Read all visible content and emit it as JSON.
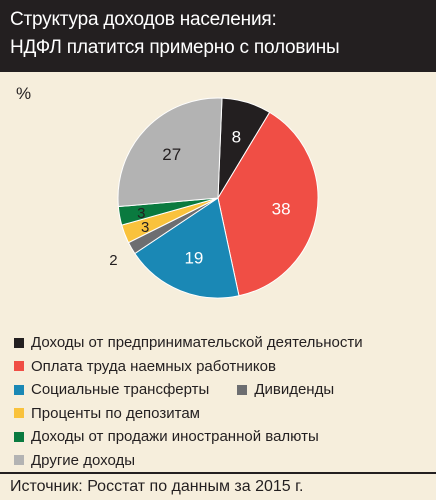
{
  "header": {
    "title_line1": "Структура доходов населения:",
    "title_line2": "НДФЛ платится примерно с половины"
  },
  "unit": "%",
  "chart_data": {
    "type": "pie",
    "title": "Структура доходов населения: НДФЛ платится примерно с половины",
    "unit": "%",
    "slices": [
      {
        "label": "Доходы от предпринимательской деятельности",
        "value": 8,
        "color": "#231f20",
        "label_color": "#ffffff"
      },
      {
        "label": "Оплата труда наемных работников",
        "value": 38,
        "color": "#f04e45",
        "label_color": "#ffffff"
      },
      {
        "label": "Социальные трансферты",
        "value": 19,
        "color": "#1a88b5",
        "label_color": "#ffffff"
      },
      {
        "label": "Дивиденды",
        "value": 2,
        "color": "#6d6e71",
        "label_color": "#231f20"
      },
      {
        "label": "Проценты по депозитам",
        "value": 3,
        "color": "#f9c23c",
        "label_color": "#231f20"
      },
      {
        "label": "Доходы от продажи иностранной валюты",
        "value": 3,
        "color": "#0a7a3f",
        "label_color": "#231f20"
      },
      {
        "label": "Другие доходы",
        "value": 27,
        "color": "#b3b3b3",
        "label_color": "#231f20"
      }
    ],
    "legend_placement": "bottom"
  },
  "legend_rows": [
    [
      {
        "label": "Доходы от предпринимательской деятельности",
        "color": "#231f20"
      }
    ],
    [
      {
        "label": "Оплата труда наемных работников",
        "color": "#f04e45"
      }
    ],
    [
      {
        "label": "Социальные трансферты",
        "color": "#1a88b5"
      },
      {
        "label": "Дивиденды",
        "color": "#6d6e71"
      }
    ],
    [
      {
        "label": "Проценты по депозитам",
        "color": "#f9c23c"
      }
    ],
    [
      {
        "label": "Доходы от продажи иностранной валюты",
        "color": "#0a7a3f"
      }
    ],
    [
      {
        "label": "Другие доходы",
        "color": "#b3b3b3"
      }
    ]
  ],
  "source": "Источник: Росстат по данным за 2015 г."
}
